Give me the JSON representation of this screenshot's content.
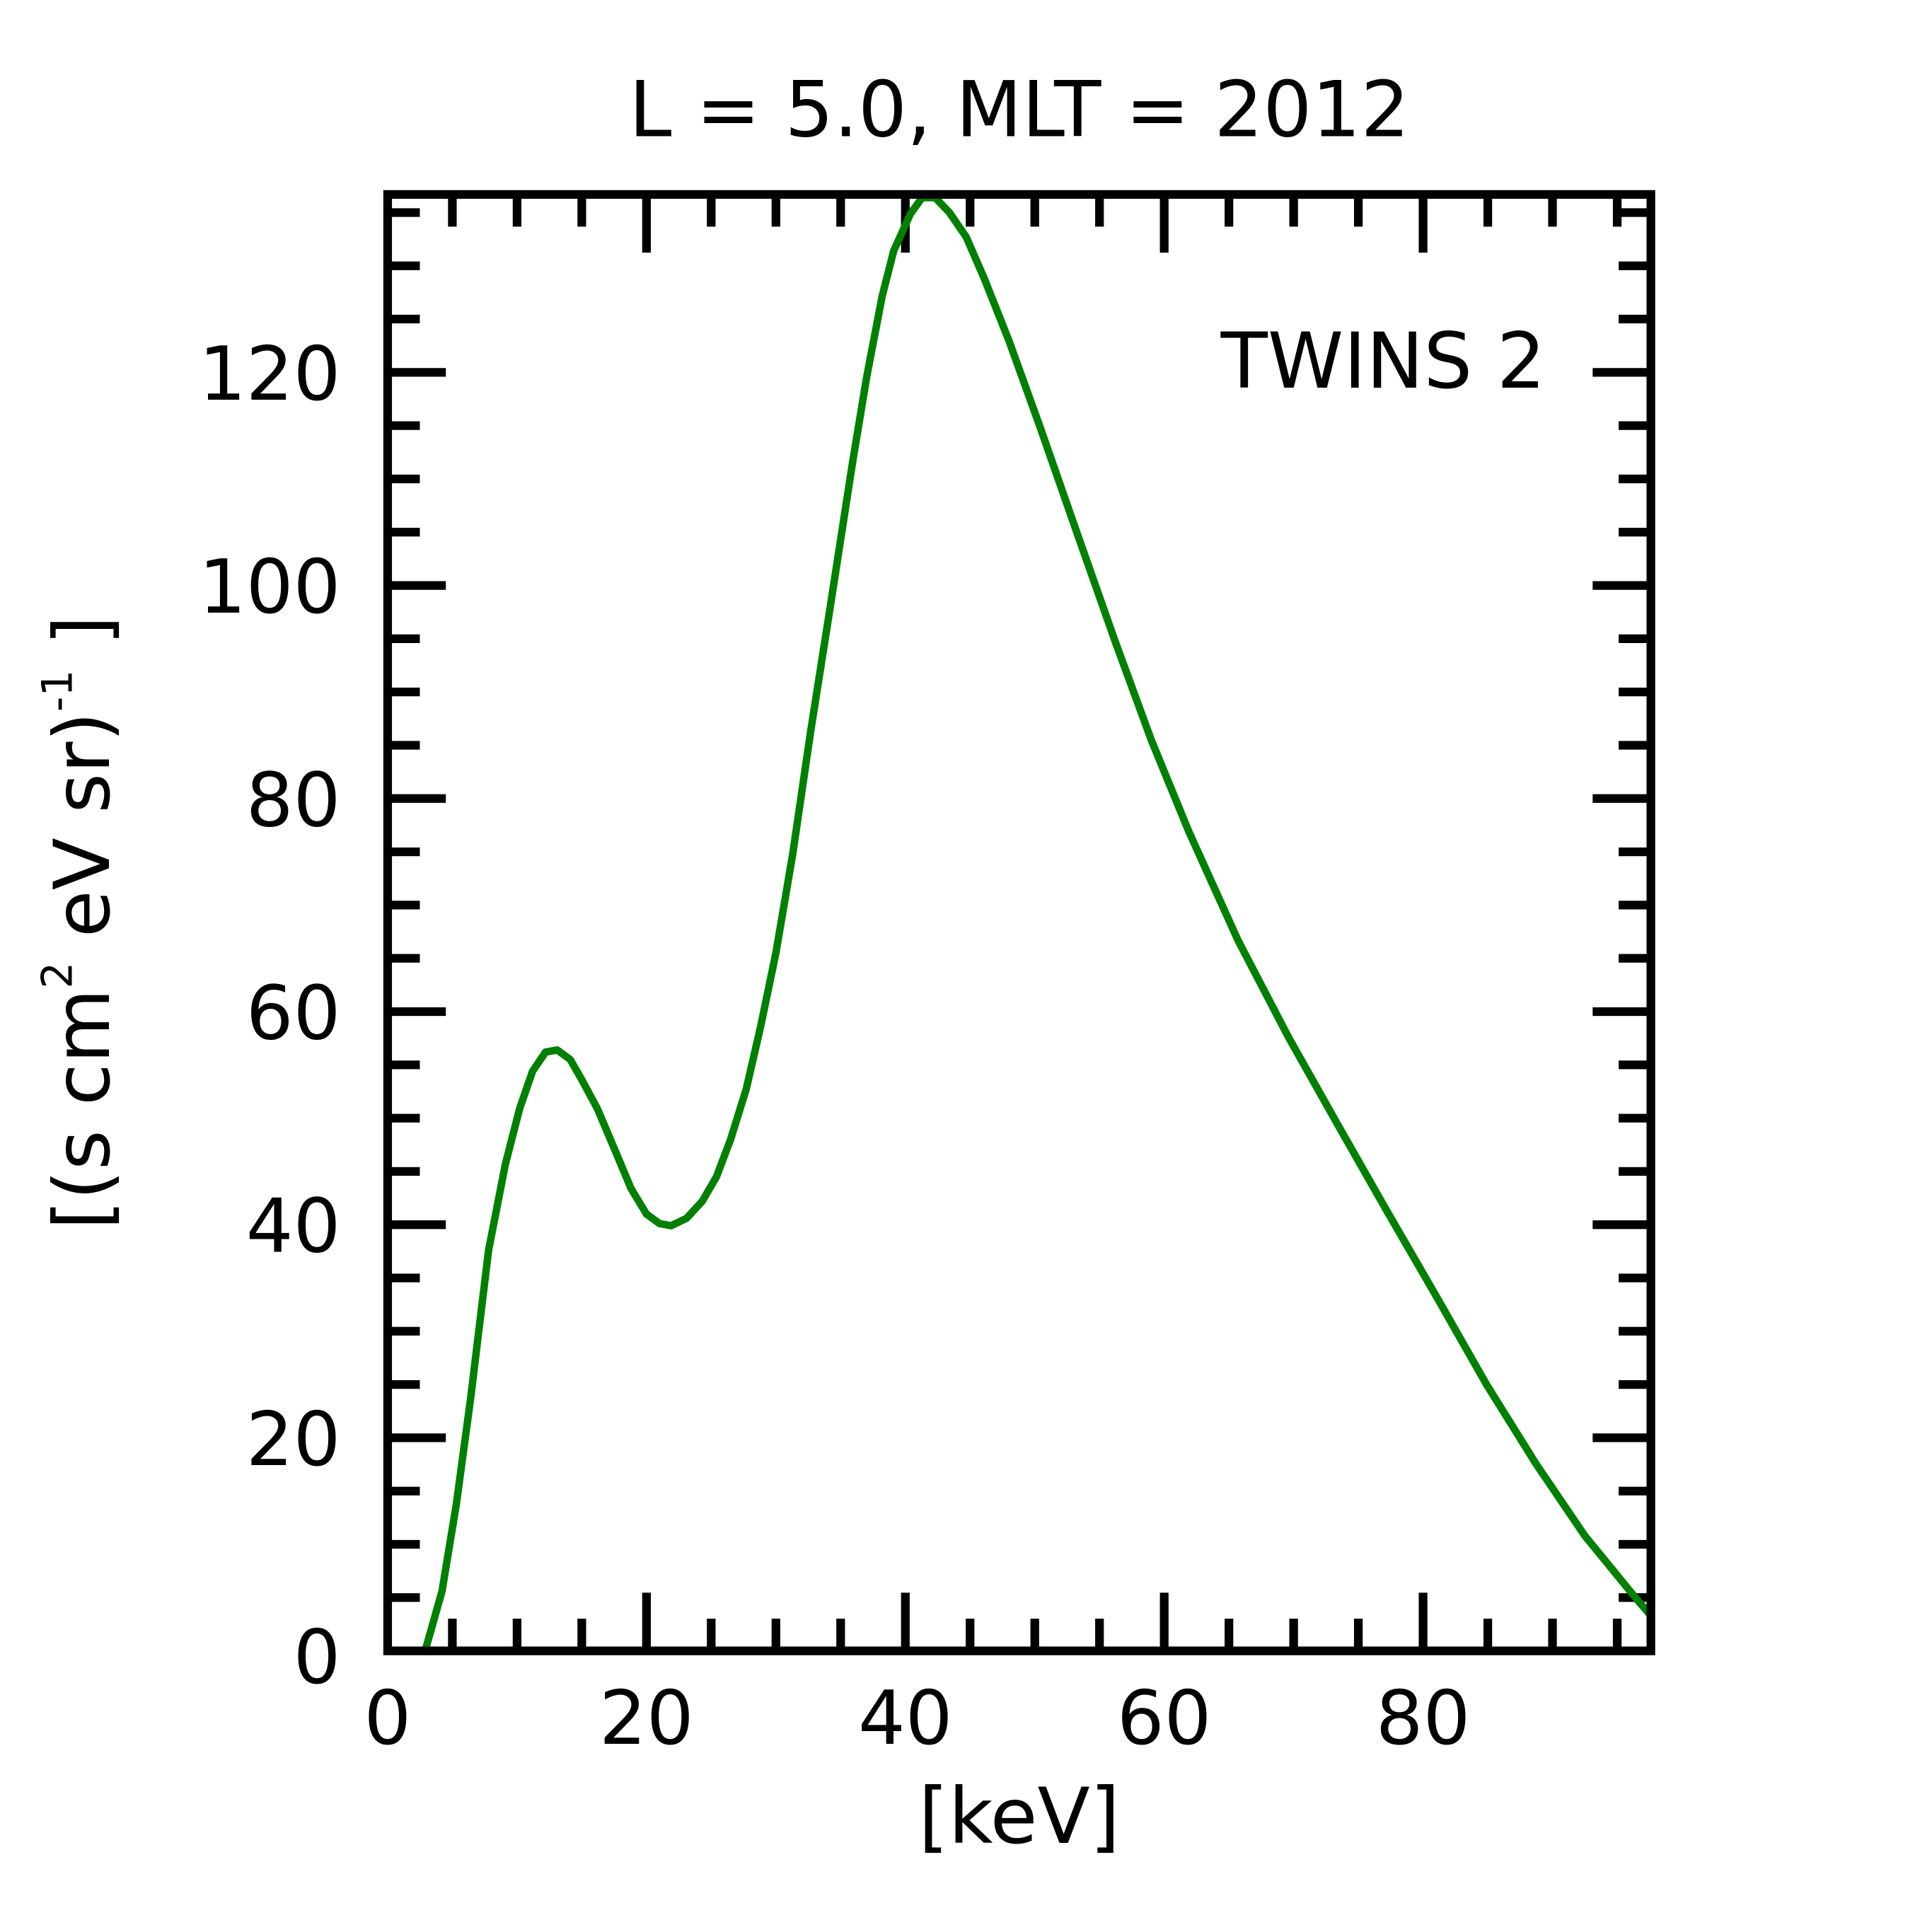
{
  "chart_data": {
    "type": "line",
    "title": "L =  5.0, MLT = 2012",
    "xlabel": "[keV]",
    "ylabel_parts": [
      "[(s cm",
      "2",
      " eV sr)",
      "-1",
      " ]"
    ],
    "xlim": [
      0,
      97.6
    ],
    "ylim": [
      0,
      136.7
    ],
    "xticks": [
      0,
      20,
      40,
      60,
      80
    ],
    "xtick_labels": [
      "0",
      "20",
      "40",
      "60",
      "80"
    ],
    "yticks": [
      0,
      20,
      40,
      60,
      80,
      100,
      120
    ],
    "ytick_labels": [
      "0",
      "20",
      "40",
      "60",
      "80",
      "100",
      "120"
    ],
    "minor_step": 5,
    "grid": false,
    "legend_placement": "top-right",
    "series": [
      {
        "name": "TWINS 2",
        "color": "#008000",
        "x": [
          2.9,
          4.2,
          5.3,
          6.4,
          7.8,
          9.1,
          10.2,
          11.2,
          12.2,
          13.1,
          14.1,
          15.0,
          16.2,
          17.7,
          18.8,
          20.0,
          21.0,
          21.9,
          23.1,
          24.3,
          25.4,
          26.5,
          27.7,
          28.8,
          30.0,
          31.3,
          32.7,
          34.2,
          35.9,
          37.0,
          38.2,
          39.1,
          40.4,
          41.3,
          42.3,
          43.4,
          44.7,
          46.1,
          48.0,
          50.4,
          53.3,
          56.2,
          59.0,
          61.9,
          65.7,
          69.6,
          73.4,
          77.2,
          81.1,
          84.9,
          88.7,
          92.5,
          96.4,
          97.6
        ],
        "y": [
          0,
          5.6,
          13.7,
          23.6,
          37.6,
          45.7,
          50.9,
          54.4,
          56.2,
          56.4,
          55.5,
          53.6,
          50.9,
          46.6,
          43.4,
          41.0,
          40.1,
          39.9,
          40.6,
          42.2,
          44.5,
          48.0,
          52.7,
          58.5,
          65.5,
          74.8,
          86.4,
          98.0,
          111.4,
          119.5,
          127.1,
          131.4,
          134.9,
          136.4,
          136.4,
          135.0,
          132.7,
          128.8,
          123.0,
          114.9,
          104.8,
          94.8,
          85.5,
          76.9,
          66.7,
          57.6,
          49.4,
          41.3,
          33.1,
          25.0,
          17.6,
          10.8,
          5.0,
          3.3
        ]
      }
    ]
  }
}
